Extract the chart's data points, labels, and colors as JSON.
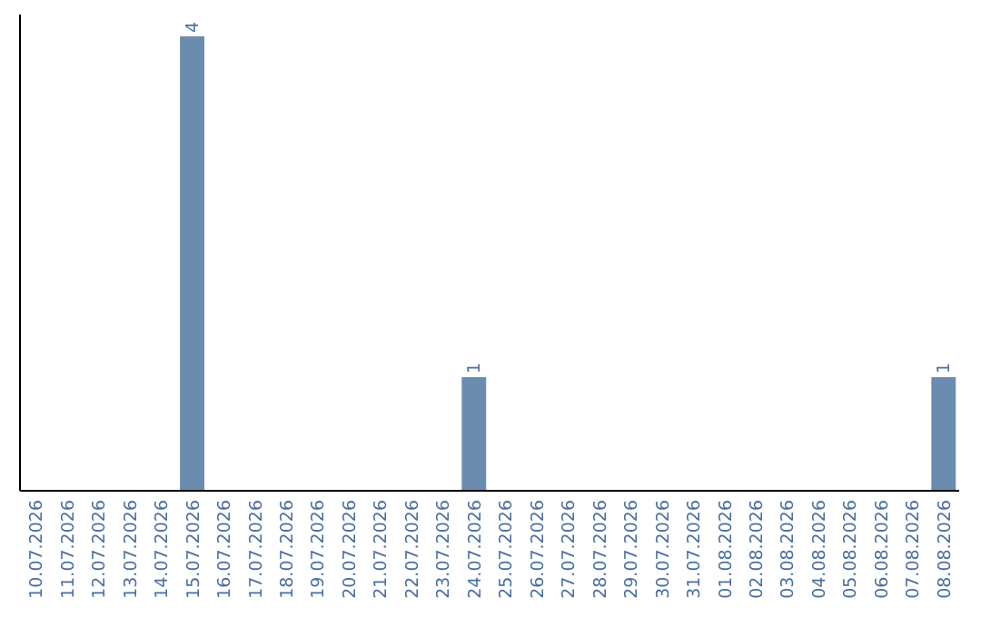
{
  "chart_data": {
    "type": "bar",
    "categories": [
      "10.07.2026",
      "11.07.2026",
      "12.07.2026",
      "13.07.2026",
      "14.07.2026",
      "15.07.2026",
      "16.07.2026",
      "17.07.2026",
      "18.07.2026",
      "19.07.2026",
      "20.07.2026",
      "21.07.2026",
      "22.07.2026",
      "23.07.2026",
      "24.07.2026",
      "25.07.2026",
      "26.07.2026",
      "27.07.2026",
      "28.07.2026",
      "29.07.2026",
      "30.07.2026",
      "31.07.2026",
      "01.08.2026",
      "02.08.2026",
      "03.08.2026",
      "04.08.2026",
      "05.08.2026",
      "06.08.2026",
      "07.08.2026",
      "08.08.2026"
    ],
    "values": [
      0,
      0,
      0,
      0,
      0,
      4,
      0,
      0,
      0,
      0,
      0,
      0,
      0,
      0,
      1,
      0,
      0,
      0,
      0,
      0,
      0,
      0,
      0,
      0,
      0,
      0,
      0,
      0,
      0,
      1
    ],
    "value_labels": [
      null,
      null,
      null,
      null,
      null,
      "4",
      null,
      null,
      null,
      null,
      null,
      null,
      null,
      null,
      "1",
      null,
      null,
      null,
      null,
      null,
      null,
      null,
      null,
      null,
      null,
      null,
      null,
      null,
      null,
      "1"
    ],
    "color": "#6b8cae",
    "tick_labels": "x"
  }
}
